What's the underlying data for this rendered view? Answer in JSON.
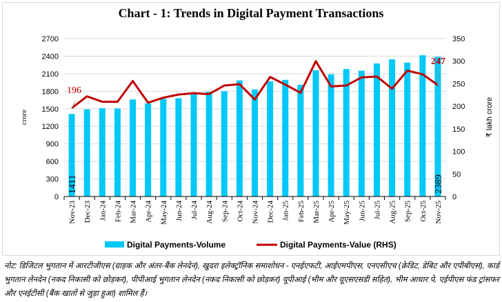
{
  "chart_data": {
    "type": "bar+line",
    "title": "Chart - 1: Trends in Digital Payment Transactions",
    "categories": [
      "Nov-23",
      "Dec-23",
      "Jan-24",
      "Feb-24",
      "Mar-24",
      "Apr-24",
      "May-24",
      "Jun-24",
      "Jul-24",
      "Aug-24",
      "Sep-24",
      "Oct-24",
      "Nov-24",
      "Dec-24",
      "Jan-25",
      "Feb-25",
      "Mar-25",
      "Apr-25",
      "May-25",
      "Jun-25",
      "Jul-25",
      "Aug-25",
      "Sep-25",
      "Oct-25",
      "Nov-25"
    ],
    "series": [
      {
        "name": "Digital Payments-Volume",
        "type": "bar",
        "axis": "left",
        "color": "#00c8f8",
        "values": [
          1411,
          1490,
          1510,
          1505,
          1660,
          1590,
          1670,
          1680,
          1750,
          1790,
          1800,
          1985,
          1830,
          1970,
          1995,
          1910,
          2160,
          2090,
          2180,
          2150,
          2275,
          2345,
          2290,
          2415,
          2389
        ]
      },
      {
        "name": "Digital Payments-Value (RHS)",
        "type": "line",
        "axis": "right",
        "color": "#c00000",
        "values": [
          196,
          222,
          210,
          210,
          256,
          208,
          219,
          226,
          229,
          227,
          246,
          249,
          215,
          265,
          248,
          230,
          300,
          244,
          246,
          264,
          266,
          239,
          279,
          271,
          247
        ]
      }
    ],
    "data_labels": {
      "first_bar": "1411",
      "last_bar": "2389",
      "first_line": "196",
      "last_line": "247"
    },
    "ylabel": "crore",
    "y2label": "₹ lakh crore",
    "ylim": [
      0,
      2700
    ],
    "yticks": [
      "0",
      "300",
      "600",
      "900",
      "1200",
      "1500",
      "1800",
      "2100",
      "2400",
      "2700"
    ],
    "y2lim": [
      0,
      350
    ],
    "y2ticks": [
      "0",
      "50",
      "100",
      "150",
      "200",
      "250",
      "300",
      "350"
    ],
    "grid": true,
    "legend": "bottom"
  },
  "note": "नोट: डिजिटल भुगतान में आरटीजीएस (ग्राहक और अंतर-बैंक लेनदेन), खुदरा इलेक्ट्रॉनिक समाशोधन - एनईएफटी, आईएमपीएस, एनएसीएच (क्रेडिट, डेबिट और एपीबीएस), कार्ड भुगतान लेनदेन (नकद निकासी को छोड़कर), पीपीआई भुगतान लेनदेन (नकद निकासी को छोड़कर) यूपीआई (भीम और यूएसएसडी सहित), भीम आधार पे, एईपीएस फंड ट्रांसफर और एनईटीसी (बैंक खातों से जुड़ा हुआ) शामिल हैं।"
}
